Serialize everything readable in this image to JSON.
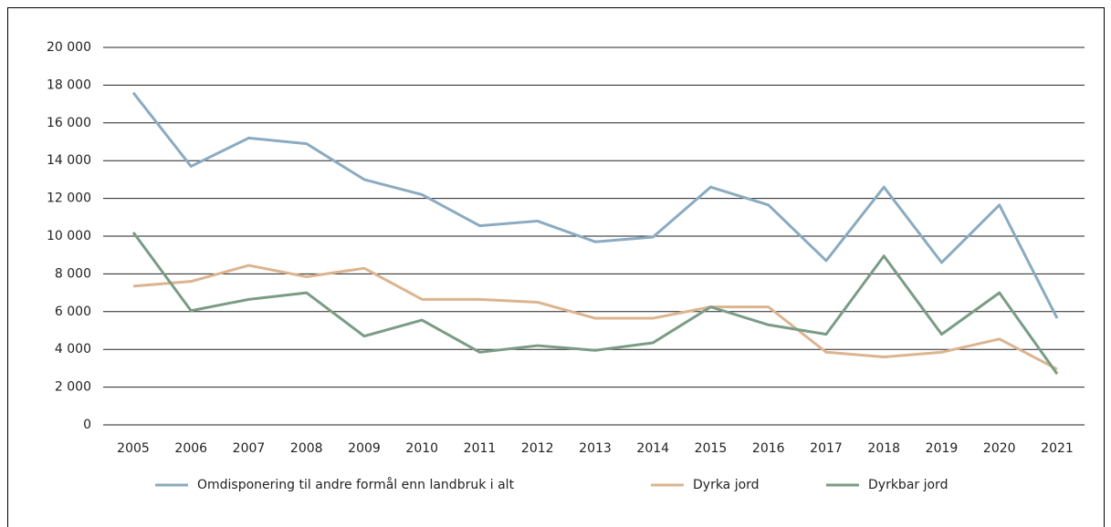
{
  "chart_data": {
    "type": "line",
    "categories": [
      "2005",
      "2006",
      "2007",
      "2008",
      "2009",
      "2010",
      "2011",
      "2012",
      "2013",
      "2014",
      "2015",
      "2016",
      "2017",
      "2018",
      "2019",
      "2020",
      "2021"
    ],
    "series": [
      {
        "name": "Omdisponering til andre formål enn landbruk i alt",
        "color": "#8aabc0",
        "values": [
          17600,
          13700,
          15200,
          14900,
          13000,
          12200,
          10550,
          10800,
          9700,
          9950,
          12600,
          11650,
          8700,
          12600,
          8600,
          11650,
          5650
        ]
      },
      {
        "name": "Dyrka jord",
        "color": "#dcb48f",
        "values": [
          7350,
          7600,
          8450,
          7850,
          8300,
          6650,
          6650,
          6500,
          5650,
          5650,
          6250,
          6250,
          3850,
          3600,
          3850,
          4550,
          2950
        ]
      },
      {
        "name": "Dyrkbar jord",
        "color": "#7a9c85",
        "values": [
          10200,
          6050,
          6650,
          7000,
          4700,
          5550,
          3850,
          4200,
          3950,
          4350,
          6250,
          5300,
          4800,
          8950,
          4800,
          7000,
          2700
        ]
      }
    ],
    "ylim": [
      0,
      20000
    ],
    "yticks": [
      0,
      {
        "value": 2000,
        "label": "2 000"
      },
      {
        "value": 4000,
        "label": "4 000"
      },
      {
        "value": 6000,
        "label": "6 000"
      },
      {
        "value": 8000,
        "label": "8 000"
      },
      {
        "value": 10000,
        "label": "10 000"
      },
      {
        "value": 12000,
        "label": "12 000"
      },
      {
        "value": 14000,
        "label": "14 000"
      },
      {
        "value": 16000,
        "label": "16 000"
      },
      {
        "value": 18000,
        "label": "18 000"
      },
      {
        "value": 20000,
        "label": "20 000"
      }
    ],
    "grid": true
  }
}
